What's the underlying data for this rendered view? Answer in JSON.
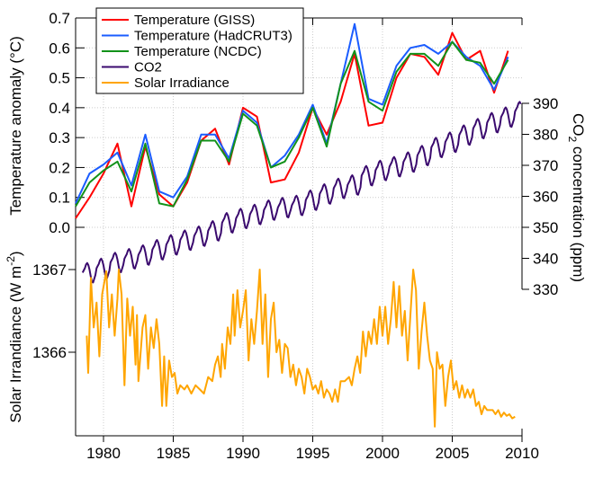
{
  "chart_data": {
    "type": "line",
    "xlim": [
      1978,
      2010
    ],
    "x_ticks": [
      "1980",
      "1985",
      "1990",
      "1995",
      "2000",
      "2005",
      "2010"
    ],
    "grid": true,
    "legend_position": "top-left",
    "axes": {
      "temperature": {
        "label": "Temperature anomaly (°C)",
        "ylim": [
          0,
          0.7
        ],
        "ticks": [
          "0.0",
          "0.1",
          "0.2",
          "0.3",
          "0.4",
          "0.5",
          "0.6",
          "0.7"
        ],
        "side": "left-top"
      },
      "co2": {
        "label_main": "CO",
        "label_sub": "2",
        "label_rest": " concentration (ppm)",
        "ylim": [
          330,
          390
        ],
        "ticks": [
          "330",
          "340",
          "350",
          "360",
          "370",
          "380",
          "390"
        ],
        "side": "right"
      },
      "solar": {
        "label_main": "Solar Irrandiance (W m",
        "label_sup": "-2",
        "label_end": ")",
        "ylim": [
          1364.99,
          1367
        ],
        "ticks": [
          "1366",
          "1367"
        ],
        "side": "left-bottom"
      }
    },
    "years": [
      1978,
      1979,
      1980,
      1981,
      1982,
      1983,
      1984,
      1985,
      1986,
      1987,
      1988,
      1989,
      1990,
      1991,
      1992,
      1993,
      1994,
      1995,
      1996,
      1997,
      1998,
      1999,
      2000,
      2001,
      2002,
      2003,
      2004,
      2005,
      2006,
      2007,
      2008,
      2009
    ],
    "series": [
      {
        "name": "Temperature (GISS)",
        "color": "#ff0000",
        "axis": "temperature",
        "values": [
          0.03,
          0.1,
          0.18,
          0.28,
          0.07,
          0.27,
          0.11,
          0.07,
          0.15,
          0.29,
          0.33,
          0.21,
          0.4,
          0.37,
          0.15,
          0.16,
          0.25,
          0.4,
          0.31,
          0.42,
          0.58,
          0.34,
          0.35,
          0.5,
          0.58,
          0.57,
          0.51,
          0.65,
          0.56,
          0.59,
          0.45,
          0.59
        ]
      },
      {
        "name": "Temperature (HadCRUT3)",
        "color": "#1a5cff",
        "axis": "temperature",
        "values": [
          0.08,
          0.18,
          0.21,
          0.25,
          0.14,
          0.31,
          0.12,
          0.1,
          0.17,
          0.31,
          0.31,
          0.23,
          0.39,
          0.35,
          0.2,
          0.24,
          0.31,
          0.41,
          0.28,
          0.48,
          0.68,
          0.43,
          0.41,
          0.54,
          0.6,
          0.61,
          0.58,
          0.62,
          0.57,
          0.54,
          0.46,
          0.57
        ]
      },
      {
        "name": "Temperature (NCDC)",
        "color": "#12921a",
        "axis": "temperature",
        "values": [
          0.07,
          0.15,
          0.19,
          0.22,
          0.12,
          0.28,
          0.08,
          0.07,
          0.16,
          0.29,
          0.29,
          0.22,
          0.38,
          0.34,
          0.2,
          0.22,
          0.3,
          0.4,
          0.27,
          0.48,
          0.59,
          0.42,
          0.39,
          0.52,
          0.58,
          0.58,
          0.54,
          0.62,
          0.56,
          0.55,
          0.48,
          0.56
        ]
      },
      {
        "name": "CO2",
        "color": "#3a0a6e",
        "axis": "co2",
        "annual_means": [
          335.4,
          336.8,
          338.7,
          339.9,
          341.1,
          342.8,
          344.4,
          345.9,
          347.2,
          348.9,
          351.5,
          352.9,
          354.2,
          355.6,
          356.4,
          357.1,
          358.8,
          360.8,
          362.6,
          363.7,
          366.7,
          368.4,
          369.6,
          371.1,
          373.2,
          375.8,
          377.5,
          379.8,
          381.9,
          383.8,
          385.6,
          387.4
        ],
        "seasonal_cycle": [
          0,
          0.7,
          1.4,
          2.6,
          3.1,
          2.4,
          0.9,
          -1.2,
          -3.0,
          -3.2,
          -2.0,
          -0.8
        ]
      },
      {
        "name": "Solar Irradiance",
        "color": "#ffa500",
        "axis": "solar",
        "points": [
          [
            1978.8,
            1366.2
          ],
          [
            1978.9,
            1365.75
          ],
          [
            1979.0,
            1366.3
          ],
          [
            1979.1,
            1366.9
          ],
          [
            1979.3,
            1366.3
          ],
          [
            1979.5,
            1366.6
          ],
          [
            1979.7,
            1365.95
          ],
          [
            1979.9,
            1366.7
          ],
          [
            1980.2,
            1366.98
          ],
          [
            1980.4,
            1366.3
          ],
          [
            1980.6,
            1366.7
          ],
          [
            1980.8,
            1366.2
          ],
          [
            1981.0,
            1366.65
          ],
          [
            1981.1,
            1367.0
          ],
          [
            1981.3,
            1366.7
          ],
          [
            1981.5,
            1365.6
          ],
          [
            1981.7,
            1366.65
          ],
          [
            1981.9,
            1366.2
          ],
          [
            1982.1,
            1366.55
          ],
          [
            1982.3,
            1365.85
          ],
          [
            1982.4,
            1366.45
          ],
          [
            1982.5,
            1365.65
          ],
          [
            1982.8,
            1366.3
          ],
          [
            1983.0,
            1366.45
          ],
          [
            1983.2,
            1365.8
          ],
          [
            1983.4,
            1366.3
          ],
          [
            1983.6,
            1366.05
          ],
          [
            1983.8,
            1366.4
          ],
          [
            1984.0,
            1366.1
          ],
          [
            1984.2,
            1365.35
          ],
          [
            1984.35,
            1365.95
          ],
          [
            1984.5,
            1365.35
          ],
          [
            1984.7,
            1365.9
          ],
          [
            1984.9,
            1365.7
          ],
          [
            1985.1,
            1365.75
          ],
          [
            1985.3,
            1365.5
          ],
          [
            1985.5,
            1365.6
          ],
          [
            1985.8,
            1365.55
          ],
          [
            1986.0,
            1365.6
          ],
          [
            1986.3,
            1365.5
          ],
          [
            1986.6,
            1365.6
          ],
          [
            1986.9,
            1365.55
          ],
          [
            1987.2,
            1365.5
          ],
          [
            1987.5,
            1365.7
          ],
          [
            1987.8,
            1365.65
          ],
          [
            1988.0,
            1365.85
          ],
          [
            1988.2,
            1365.95
          ],
          [
            1988.4,
            1365.7
          ],
          [
            1988.5,
            1366.1
          ],
          [
            1988.7,
            1365.8
          ],
          [
            1988.9,
            1366.3
          ],
          [
            1989.1,
            1366.1
          ],
          [
            1989.3,
            1366.7
          ],
          [
            1989.4,
            1366.2
          ],
          [
            1989.6,
            1366.75
          ],
          [
            1989.8,
            1366.3
          ],
          [
            1990.0,
            1366.5
          ],
          [
            1990.2,
            1366.75
          ],
          [
            1990.4,
            1365.9
          ],
          [
            1990.6,
            1366.4
          ],
          [
            1990.8,
            1366.1
          ],
          [
            1991.0,
            1366.5
          ],
          [
            1991.2,
            1367.0
          ],
          [
            1991.4,
            1366.1
          ],
          [
            1991.6,
            1366.7
          ],
          [
            1991.8,
            1365.7
          ],
          [
            1992.0,
            1366.4
          ],
          [
            1992.2,
            1366.6
          ],
          [
            1992.4,
            1366.0
          ],
          [
            1992.6,
            1366.15
          ],
          [
            1992.8,
            1365.75
          ],
          [
            1993.0,
            1366.1
          ],
          [
            1993.2,
            1366.05
          ],
          [
            1993.4,
            1365.7
          ],
          [
            1993.6,
            1365.85
          ],
          [
            1993.8,
            1365.6
          ],
          [
            1994.0,
            1365.8
          ],
          [
            1994.2,
            1365.7
          ],
          [
            1994.4,
            1365.5
          ],
          [
            1994.6,
            1365.8
          ],
          [
            1994.8,
            1365.7
          ],
          [
            1995.0,
            1365.55
          ],
          [
            1995.2,
            1365.6
          ],
          [
            1995.4,
            1365.5
          ],
          [
            1995.6,
            1365.65
          ],
          [
            1995.8,
            1365.45
          ],
          [
            1996.0,
            1365.55
          ],
          [
            1996.2,
            1365.5
          ],
          [
            1996.4,
            1365.4
          ],
          [
            1996.6,
            1365.55
          ],
          [
            1996.8,
            1365.4
          ],
          [
            1997.0,
            1365.65
          ],
          [
            1997.3,
            1365.65
          ],
          [
            1997.6,
            1365.7
          ],
          [
            1997.8,
            1365.6
          ],
          [
            1998.0,
            1365.8
          ],
          [
            1998.2,
            1365.95
          ],
          [
            1998.4,
            1365.75
          ],
          [
            1998.6,
            1366.25
          ],
          [
            1998.8,
            1365.95
          ],
          [
            1999.0,
            1366.25
          ],
          [
            1999.2,
            1366.1
          ],
          [
            1999.4,
            1366.4
          ],
          [
            1999.6,
            1366.1
          ],
          [
            1999.8,
            1366.55
          ],
          [
            2000.0,
            1366.2
          ],
          [
            2000.2,
            1366.55
          ],
          [
            2000.4,
            1366.1
          ],
          [
            2000.6,
            1366.4
          ],
          [
            2000.8,
            1366.85
          ],
          [
            2001.0,
            1366.3
          ],
          [
            2001.2,
            1366.8
          ],
          [
            2001.4,
            1366.2
          ],
          [
            2001.6,
            1366.5
          ],
          [
            2001.8,
            1365.9
          ],
          [
            2002.0,
            1366.45
          ],
          [
            2002.2,
            1367.0
          ],
          [
            2002.4,
            1366.75
          ],
          [
            2002.6,
            1365.8
          ],
          [
            2002.8,
            1366.25
          ],
          [
            2003.0,
            1366.6
          ],
          [
            2003.2,
            1366.2
          ],
          [
            2003.4,
            1365.9
          ],
          [
            2003.6,
            1365.8
          ],
          [
            2003.75,
            1365.1
          ],
          [
            2003.9,
            1366.0
          ],
          [
            2004.1,
            1365.8
          ],
          [
            2004.3,
            1365.85
          ],
          [
            2004.5,
            1365.35
          ],
          [
            2004.7,
            1365.7
          ],
          [
            2004.9,
            1365.9
          ],
          [
            2005.1,
            1365.55
          ],
          [
            2005.3,
            1365.65
          ],
          [
            2005.5,
            1365.45
          ],
          [
            2005.7,
            1365.6
          ],
          [
            2005.9,
            1365.45
          ],
          [
            2006.1,
            1365.55
          ],
          [
            2006.3,
            1365.45
          ],
          [
            2006.5,
            1365.55
          ],
          [
            2006.7,
            1365.35
          ],
          [
            2006.9,
            1365.4
          ],
          [
            2007.1,
            1365.25
          ],
          [
            2007.3,
            1365.35
          ],
          [
            2007.5,
            1365.3
          ],
          [
            2007.7,
            1365.3
          ],
          [
            2007.9,
            1365.3
          ],
          [
            2008.1,
            1365.25
          ],
          [
            2008.3,
            1365.3
          ],
          [
            2008.5,
            1365.22
          ],
          [
            2008.7,
            1365.27
          ],
          [
            2008.9,
            1365.23
          ],
          [
            2009.1,
            1365.25
          ],
          [
            2009.3,
            1365.2
          ],
          [
            2009.5,
            1365.22
          ]
        ]
      }
    ],
    "legend": [
      "Temperature (GISS)",
      "Temperature (HadCRUT3)",
      "Temperature (NCDC)",
      "CO2",
      "Solar Irradiance"
    ]
  }
}
